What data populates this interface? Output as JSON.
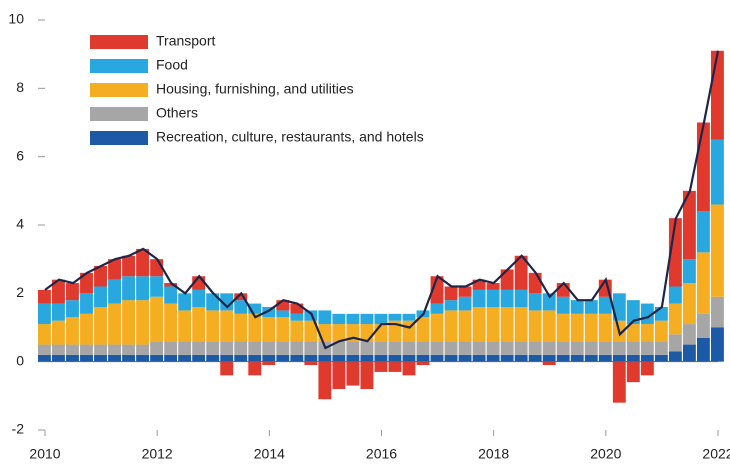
{
  "chart_data": {
    "type": "stacked_bar_line",
    "x": [
      2010,
      2010.25,
      2010.5,
      2010.75,
      2011,
      2011.25,
      2011.5,
      2011.75,
      2012,
      2012.25,
      2012.5,
      2012.75,
      2013,
      2013.25,
      2013.5,
      2013.75,
      2014,
      2014.25,
      2014.5,
      2014.75,
      2015,
      2015.25,
      2015.5,
      2015.75,
      2016,
      2016.25,
      2016.5,
      2016.75,
      2017,
      2017.25,
      2017.5,
      2017.75,
      2018,
      2018.25,
      2018.5,
      2018.75,
      2019,
      2019.25,
      2019.5,
      2019.75,
      2020,
      2020.25,
      2020.5,
      2020.75,
      2021,
      2021.25,
      2021.5,
      2021.75,
      2022
    ],
    "series": [
      {
        "name": "Transport",
        "color": "#e03a2f",
        "values": [
          0.4,
          0.7,
          0.5,
          0.6,
          0.6,
          0.6,
          0.6,
          0.8,
          0.5,
          0.1,
          0,
          0.4,
          0,
          -0.4,
          0.2,
          -0.4,
          -0.1,
          0.3,
          0.3,
          -0.1,
          -1.1,
          -0.8,
          -0.7,
          -0.8,
          -0.3,
          -0.3,
          -0.4,
          -0.1,
          0.8,
          0.4,
          0.3,
          0.3,
          0.2,
          0.6,
          1.0,
          0.6,
          -0.1,
          0.4,
          0,
          0,
          0.5,
          -1.2,
          -0.6,
          -0.4,
          0,
          2.0,
          2.0,
          2.6,
          2.6
        ]
      },
      {
        "name": "Food",
        "color": "#29a8e0",
        "values": [
          0.6,
          0.5,
          0.5,
          0.6,
          0.6,
          0.7,
          0.7,
          0.7,
          0.6,
          0.5,
          0.5,
          0.5,
          0.5,
          0.5,
          0.4,
          0.3,
          0.3,
          0.2,
          0.2,
          0.3,
          0.4,
          0.3,
          0.3,
          0.3,
          0.3,
          0.2,
          0.2,
          0.2,
          0.3,
          0.3,
          0.4,
          0.5,
          0.5,
          0.5,
          0.5,
          0.5,
          0.5,
          0.5,
          0.4,
          0.4,
          0.5,
          0.8,
          0.7,
          0.6,
          0.4,
          0.5,
          0.7,
          1.2,
          1.9
        ]
      },
      {
        "name": "Housing, furnishing, and utilities",
        "color": "#f5ae22",
        "values": [
          0.6,
          0.7,
          0.8,
          0.9,
          1.1,
          1.2,
          1.3,
          1.3,
          1.3,
          1.1,
          0.9,
          1.0,
          0.9,
          0.9,
          0.8,
          0.8,
          0.7,
          0.7,
          0.6,
          0.6,
          0.5,
          0.5,
          0.5,
          0.5,
          0.5,
          0.6,
          0.6,
          0.7,
          0.8,
          0.9,
          0.9,
          1.0,
          1.0,
          1.0,
          1.0,
          0.9,
          0.9,
          0.8,
          0.8,
          0.8,
          0.8,
          0.6,
          0.5,
          0.5,
          0.6,
          0.9,
          1.2,
          1.8,
          2.7
        ]
      },
      {
        "name": "Others",
        "color": "#a6a6a6",
        "values": [
          0.3,
          0.3,
          0.3,
          0.3,
          0.3,
          0.3,
          0.3,
          0.3,
          0.4,
          0.4,
          0.4,
          0.4,
          0.4,
          0.4,
          0.4,
          0.4,
          0.4,
          0.4,
          0.4,
          0.4,
          0.4,
          0.4,
          0.4,
          0.4,
          0.4,
          0.4,
          0.4,
          0.4,
          0.4,
          0.4,
          0.4,
          0.4,
          0.4,
          0.4,
          0.4,
          0.4,
          0.4,
          0.4,
          0.4,
          0.4,
          0.4,
          0.4,
          0.4,
          0.4,
          0.4,
          0.5,
          0.6,
          0.7,
          0.9
        ]
      },
      {
        "name": "Recreation, culture, restaurants, and hotels",
        "color": "#1c5aa6",
        "values": [
          0.2,
          0.2,
          0.2,
          0.2,
          0.2,
          0.2,
          0.2,
          0.2,
          0.2,
          0.2,
          0.2,
          0.2,
          0.2,
          0.2,
          0.2,
          0.2,
          0.2,
          0.2,
          0.2,
          0.2,
          0.2,
          0.2,
          0.2,
          0.2,
          0.2,
          0.2,
          0.2,
          0.2,
          0.2,
          0.2,
          0.2,
          0.2,
          0.2,
          0.2,
          0.2,
          0.2,
          0.2,
          0.2,
          0.2,
          0.2,
          0.2,
          0.2,
          0.2,
          0.2,
          0.2,
          0.3,
          0.5,
          0.7,
          1.0
        ]
      },
      {
        "type": "line",
        "color": "#1f2547",
        "values": [
          2.1,
          2.4,
          2.3,
          2.6,
          2.8,
          3.0,
          3.1,
          3.3,
          3.0,
          2.3,
          2.0,
          2.5,
          2.0,
          1.6,
          2.0,
          1.3,
          1.5,
          1.8,
          1.7,
          1.4,
          0.4,
          0.6,
          0.7,
          0.6,
          1.1,
          1.1,
          1.0,
          1.4,
          2.5,
          2.2,
          2.2,
          2.4,
          2.3,
          2.7,
          3.1,
          2.6,
          1.9,
          2.3,
          1.8,
          1.8,
          2.4,
          0.8,
          1.2,
          1.3,
          1.6,
          4.2,
          5.0,
          7.0,
          9.1
        ]
      }
    ],
    "xlim": [
      2010,
      2022
    ],
    "xticks": [
      2010,
      2012,
      2014,
      2016,
      2018,
      2020,
      2022
    ],
    "ylim": [
      -2,
      10
    ],
    "yticks": [
      -2,
      0,
      2,
      4,
      6,
      8,
      10
    ],
    "legend": "top-left"
  }
}
